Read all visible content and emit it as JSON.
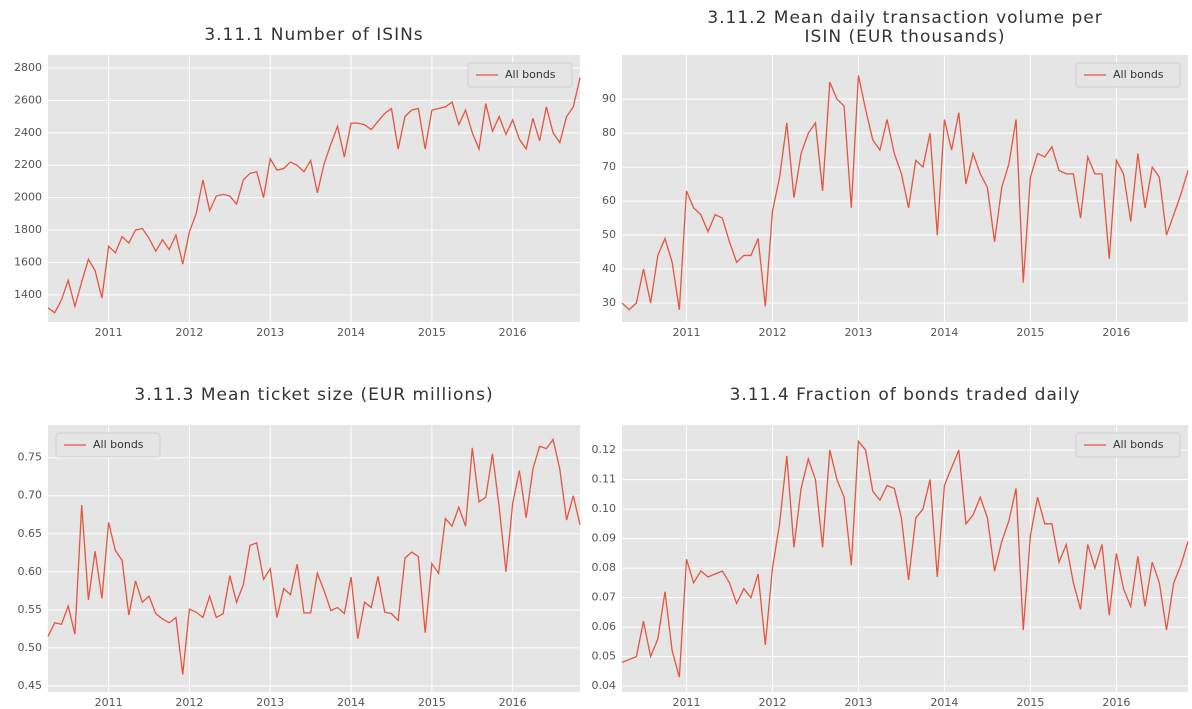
{
  "chart_data": [
    {
      "type": "line",
      "title": "3.11.1 Number of ISINs",
      "x": [
        2010.25,
        2010.333,
        2010.417,
        2010.5,
        2010.583,
        2010.667,
        2010.75,
        2010.833,
        2010.917,
        2011,
        2011.083,
        2011.167,
        2011.25,
        2011.333,
        2011.417,
        2011.5,
        2011.583,
        2011.667,
        2011.75,
        2011.833,
        2011.917,
        2012,
        2012.083,
        2012.167,
        2012.25,
        2012.333,
        2012.417,
        2012.5,
        2012.583,
        2012.667,
        2012.75,
        2012.833,
        2012.917,
        2013,
        2013.083,
        2013.167,
        2013.25,
        2013.333,
        2013.417,
        2013.5,
        2013.583,
        2013.667,
        2013.75,
        2013.833,
        2013.917,
        2014,
        2014.083,
        2014.167,
        2014.25,
        2014.333,
        2014.417,
        2014.5,
        2014.583,
        2014.667,
        2014.75,
        2014.833,
        2014.917,
        2015,
        2015.083,
        2015.167,
        2015.25,
        2015.333,
        2015.417,
        2015.5,
        2015.583,
        2015.667,
        2015.75,
        2015.833,
        2015.917,
        2016,
        2016.083,
        2016.167,
        2016.25,
        2016.333,
        2016.417,
        2016.5,
        2016.583,
        2016.667,
        2016.75,
        2016.833
      ],
      "series": [
        {
          "name": "All bonds",
          "color": "#e5553f",
          "values": [
            1320,
            1290,
            1370,
            1490,
            1330,
            1480,
            1620,
            1550,
            1380,
            1700,
            1660,
            1760,
            1720,
            1800,
            1810,
            1750,
            1670,
            1740,
            1680,
            1770,
            1590,
            1790,
            1900,
            2110,
            1920,
            2010,
            2020,
            2010,
            1960,
            2110,
            2150,
            2160,
            2000,
            2240,
            2170,
            2180,
            2220,
            2200,
            2160,
            2230,
            2030,
            2210,
            2330,
            2440,
            2250,
            2460,
            2460,
            2450,
            2420,
            2470,
            2520,
            2550,
            2300,
            2500,
            2540,
            2550,
            2300,
            2540,
            2550,
            2560,
            2590,
            2450,
            2540,
            2400,
            2300,
            2580,
            2410,
            2500,
            2390,
            2480,
            2360,
            2300,
            2490,
            2350,
            2560,
            2400,
            2340,
            2500,
            2560,
            2740
          ]
        }
      ],
      "xlim": [
        2010.25,
        2016.833
      ],
      "xticks": [
        2011,
        2012,
        2013,
        2014,
        2015,
        2016
      ],
      "ylim": [
        1233,
        2880
      ],
      "yticks": [
        1400,
        1600,
        1800,
        2000,
        2200,
        2400,
        2600,
        2800
      ],
      "grid": true,
      "legend": "upper right"
    },
    {
      "type": "line",
      "title": [
        "3.11.2 Mean daily transaction volume per",
        "ISIN (EUR thousands)"
      ],
      "x": [
        2010.25,
        2010.333,
        2010.417,
        2010.5,
        2010.583,
        2010.667,
        2010.75,
        2010.833,
        2010.917,
        2011,
        2011.083,
        2011.167,
        2011.25,
        2011.333,
        2011.417,
        2011.5,
        2011.583,
        2011.667,
        2011.75,
        2011.833,
        2011.917,
        2012,
        2012.083,
        2012.167,
        2012.25,
        2012.333,
        2012.417,
        2012.5,
        2012.583,
        2012.667,
        2012.75,
        2012.833,
        2012.917,
        2013,
        2013.083,
        2013.167,
        2013.25,
        2013.333,
        2013.417,
        2013.5,
        2013.583,
        2013.667,
        2013.75,
        2013.833,
        2013.917,
        2014,
        2014.083,
        2014.167,
        2014.25,
        2014.333,
        2014.417,
        2014.5,
        2014.583,
        2014.667,
        2014.75,
        2014.833,
        2014.917,
        2015,
        2015.083,
        2015.167,
        2015.25,
        2015.333,
        2015.417,
        2015.5,
        2015.583,
        2015.667,
        2015.75,
        2015.833,
        2015.917,
        2016,
        2016.083,
        2016.167,
        2016.25,
        2016.333,
        2016.417,
        2016.5,
        2016.583,
        2016.667,
        2016.75,
        2016.833
      ],
      "series": [
        {
          "name": "All bonds",
          "color": "#e5553f",
          "values": [
            30,
            28,
            30,
            40,
            30,
            44,
            49,
            42,
            28,
            63,
            58,
            56,
            51,
            56,
            55,
            48,
            42,
            44,
            44,
            49,
            29,
            57,
            67,
            83,
            61,
            74,
            80,
            83,
            63,
            95,
            90,
            88,
            58,
            97,
            87,
            78,
            75,
            84,
            74,
            68,
            58,
            72,
            70,
            80,
            50,
            84,
            75,
            86,
            65,
            74,
            68,
            64,
            48,
            64,
            71,
            84,
            36,
            67,
            74,
            73,
            76,
            69,
            68,
            68,
            55,
            73,
            68,
            68,
            43,
            72,
            68,
            54,
            74,
            58,
            70,
            67,
            50,
            56,
            62,
            69
          ]
        }
      ],
      "xlim": [
        2010.25,
        2016.833
      ],
      "xticks": [
        2011,
        2012,
        2013,
        2014,
        2015,
        2016
      ],
      "ylim": [
        24.4,
        103
      ],
      "yticks": [
        30,
        40,
        50,
        60,
        70,
        80,
        90
      ],
      "grid": true,
      "legend": "upper right"
    },
    {
      "type": "line",
      "title": "3.11.3 Mean ticket size (EUR millions)",
      "x": [
        2010.25,
        2010.333,
        2010.417,
        2010.5,
        2010.583,
        2010.667,
        2010.75,
        2010.833,
        2010.917,
        2011,
        2011.083,
        2011.167,
        2011.25,
        2011.333,
        2011.417,
        2011.5,
        2011.583,
        2011.667,
        2011.75,
        2011.833,
        2011.917,
        2012,
        2012.083,
        2012.167,
        2012.25,
        2012.333,
        2012.417,
        2012.5,
        2012.583,
        2012.667,
        2012.75,
        2012.833,
        2012.917,
        2013,
        2013.083,
        2013.167,
        2013.25,
        2013.333,
        2013.417,
        2013.5,
        2013.583,
        2013.667,
        2013.75,
        2013.833,
        2013.917,
        2014,
        2014.083,
        2014.167,
        2014.25,
        2014.333,
        2014.417,
        2014.5,
        2014.583,
        2014.667,
        2014.75,
        2014.833,
        2014.917,
        2015,
        2015.083,
        2015.167,
        2015.25,
        2015.333,
        2015.417,
        2015.5,
        2015.583,
        2015.667,
        2015.75,
        2015.833,
        2015.917,
        2016,
        2016.083,
        2016.167,
        2016.25,
        2016.333,
        2016.417,
        2016.5,
        2016.583,
        2016.667,
        2016.75,
        2016.833
      ],
      "series": [
        {
          "name": "All bonds",
          "color": "#e5553f",
          "values": [
            0.515,
            0.533,
            0.531,
            0.555,
            0.518,
            0.688,
            0.563,
            0.627,
            0.565,
            0.665,
            0.628,
            0.615,
            0.543,
            0.588,
            0.56,
            0.568,
            0.545,
            0.538,
            0.533,
            0.54,
            0.465,
            0.551,
            0.547,
            0.54,
            0.568,
            0.54,
            0.545,
            0.595,
            0.56,
            0.583,
            0.635,
            0.638,
            0.59,
            0.604,
            0.54,
            0.578,
            0.57,
            0.61,
            0.546,
            0.546,
            0.598,
            0.575,
            0.549,
            0.553,
            0.545,
            0.593,
            0.512,
            0.56,
            0.553,
            0.594,
            0.547,
            0.545,
            0.536,
            0.618,
            0.626,
            0.62,
            0.52,
            0.611,
            0.598,
            0.67,
            0.66,
            0.685,
            0.66,
            0.763,
            0.692,
            0.698,
            0.755,
            0.685,
            0.6,
            0.69,
            0.733,
            0.671,
            0.735,
            0.765,
            0.762,
            0.774,
            0.735,
            0.668,
            0.7,
            0.662
          ]
        }
      ],
      "xlim": [
        2010.25,
        2016.833
      ],
      "xticks": [
        2011,
        2012,
        2013,
        2014,
        2015,
        2016
      ],
      "ylim": [
        0.442,
        0.793
      ],
      "yticks": [
        0.45,
        {
          "value": 0.5,
          "label": "0.50"
        },
        0.55,
        {
          "value": 0.6,
          "label": "0.60"
        },
        0.65,
        {
          "value": 0.7,
          "label": "0.70"
        },
        0.75
      ],
      "grid": true,
      "legend": "upper left"
    },
    {
      "type": "line",
      "title": "3.11.4 Fraction of bonds traded daily",
      "x": [
        2010.25,
        2010.333,
        2010.417,
        2010.5,
        2010.583,
        2010.667,
        2010.75,
        2010.833,
        2010.917,
        2011,
        2011.083,
        2011.167,
        2011.25,
        2011.333,
        2011.417,
        2011.5,
        2011.583,
        2011.667,
        2011.75,
        2011.833,
        2011.917,
        2012,
        2012.083,
        2012.167,
        2012.25,
        2012.333,
        2012.417,
        2012.5,
        2012.583,
        2012.667,
        2012.75,
        2012.833,
        2012.917,
        2013,
        2013.083,
        2013.167,
        2013.25,
        2013.333,
        2013.417,
        2013.5,
        2013.583,
        2013.667,
        2013.75,
        2013.833,
        2013.917,
        2014,
        2014.083,
        2014.167,
        2014.25,
        2014.333,
        2014.417,
        2014.5,
        2014.583,
        2014.667,
        2014.75,
        2014.833,
        2014.917,
        2015,
        2015.083,
        2015.167,
        2015.25,
        2015.333,
        2015.417,
        2015.5,
        2015.583,
        2015.667,
        2015.75,
        2015.833,
        2015.917,
        2016,
        2016.083,
        2016.167,
        2016.25,
        2016.333,
        2016.417,
        2016.5,
        2016.583,
        2016.667,
        2016.75,
        2016.833
      ],
      "series": [
        {
          "name": "All bonds",
          "color": "#e5553f",
          "values": [
            0.048,
            0.049,
            0.05,
            0.062,
            0.05,
            0.056,
            0.072,
            0.052,
            0.043,
            0.083,
            0.075,
            0.079,
            0.077,
            0.078,
            0.079,
            0.075,
            0.068,
            0.073,
            0.07,
            0.078,
            0.054,
            0.08,
            0.095,
            0.118,
            0.087,
            0.107,
            0.117,
            0.11,
            0.087,
            0.12,
            0.11,
            0.104,
            0.081,
            0.123,
            0.12,
            0.106,
            0.103,
            0.108,
            0.107,
            0.097,
            0.076,
            0.097,
            0.1,
            0.11,
            0.077,
            0.108,
            0.114,
            0.12,
            0.095,
            0.098,
            0.104,
            0.097,
            0.079,
            0.089,
            0.096,
            0.107,
            0.059,
            0.091,
            0.104,
            0.095,
            0.095,
            0.082,
            0.088,
            0.075,
            0.066,
            0.088,
            0.08,
            0.088,
            0.064,
            0.085,
            0.073,
            0.067,
            0.084,
            0.067,
            0.082,
            0.075,
            0.059,
            0.075,
            0.081,
            0.089
          ]
        }
      ],
      "xlim": [
        2010.25,
        2016.833
      ],
      "xticks": [
        2011,
        2012,
        2013,
        2014,
        2015,
        2016
      ],
      "ylim": [
        0.038,
        0.1285
      ],
      "yticks": [
        0.04,
        0.05,
        0.06,
        0.07,
        0.08,
        0.09,
        {
          "value": 0.1,
          "label": "0.10"
        },
        0.11,
        0.12
      ],
      "grid": true,
      "legend": "upper right"
    }
  ]
}
